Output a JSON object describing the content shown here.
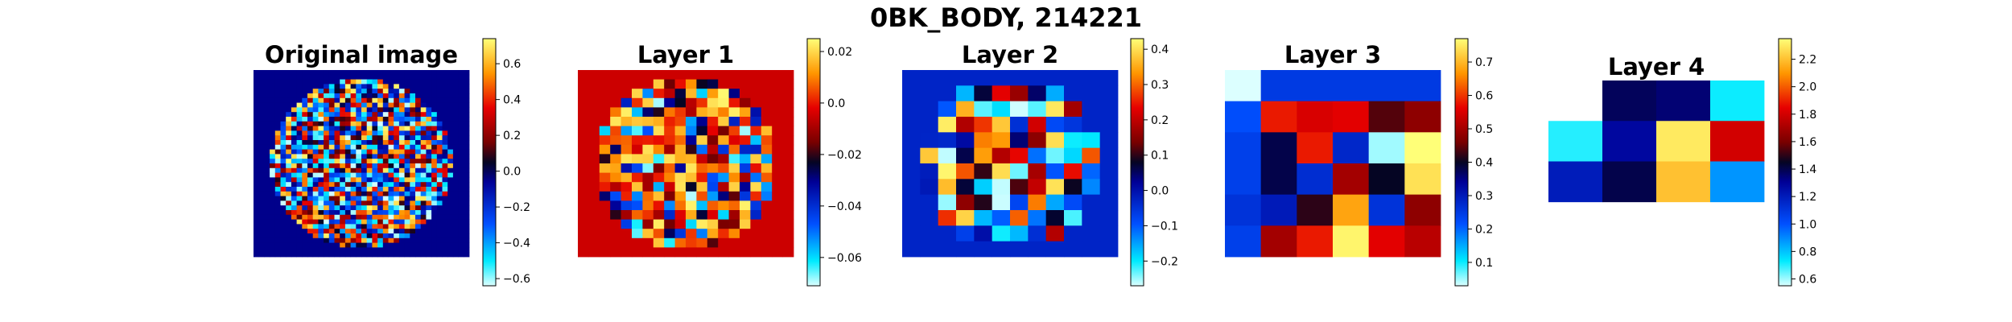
{
  "figure": {
    "title": "0BK_BODY, 214221"
  },
  "chart_data": [
    {
      "type": "heatmap",
      "title": "Original image",
      "grid_size": [
        40,
        40
      ],
      "pattern": "disk-noise",
      "background": -0.05,
      "colormap": "jet-divergent",
      "colorbar": {
        "ticks": [
          0.6,
          0.4,
          0.2,
          0.0,
          -0.2,
          -0.4,
          -0.6
        ],
        "range": [
          -0.64,
          0.74
        ]
      }
    },
    {
      "type": "heatmap",
      "title": "Layer 1",
      "grid_size": [
        20,
        20
      ],
      "pattern": "disk-noise",
      "background": -0.005,
      "colormap": "jet-divergent",
      "colorbar": {
        "ticks": [
          0.02,
          0.0,
          -0.02,
          -0.04,
          -0.06
        ],
        "range": [
          -0.071,
          0.025
        ]
      }
    },
    {
      "type": "heatmap",
      "title": "Layer 2",
      "grid_size": [
        12,
        12
      ],
      "pattern": "disk-noise",
      "background": -0.03,
      "colormap": "jet-divergent",
      "colorbar": {
        "ticks": [
          0.4,
          0.3,
          0.2,
          0.1,
          0.0,
          -0.1,
          -0.2
        ],
        "range": [
          -0.27,
          0.43
        ]
      }
    },
    {
      "type": "heatmap",
      "title": "Layer 3",
      "grid_size": [
        6,
        6
      ],
      "colormap": "jet-divergent",
      "values": [
        [
          0.02,
          0.25,
          0.25,
          0.25,
          0.25,
          0.25
        ],
        [
          0.22,
          0.58,
          0.55,
          0.56,
          0.44,
          0.48
        ],
        [
          0.24,
          0.38,
          0.58,
          0.28,
          0.05,
          0.77
        ],
        [
          0.24,
          0.38,
          0.27,
          0.5,
          0.4,
          0.74
        ],
        [
          0.26,
          0.3,
          0.42,
          0.68,
          0.26,
          0.48
        ],
        [
          0.24,
          0.5,
          0.58,
          0.76,
          0.56,
          0.52
        ]
      ],
      "colorbar": {
        "ticks": [
          0.7,
          0.6,
          0.5,
          0.4,
          0.3,
          0.2,
          0.1
        ],
        "range": [
          0.03,
          0.77
        ]
      }
    },
    {
      "type": "heatmap",
      "title": "Layer 4",
      "grid_size": [
        4,
        4
      ],
      "colormap": "jet-divergent",
      "values": [
        [
          null,
          1.38,
          1.35,
          0.72
        ],
        [
          0.7,
          1.28,
          2.3,
          1.8
        ],
        [
          1.2,
          1.4,
          2.2,
          0.88
        ],
        [
          null,
          null,
          null,
          null
        ]
      ],
      "colorbar": {
        "ticks": [
          2.2,
          2.0,
          1.8,
          1.6,
          1.4,
          1.2,
          1.0,
          0.8,
          0.6
        ],
        "range": [
          0.55,
          2.35
        ]
      }
    }
  ]
}
